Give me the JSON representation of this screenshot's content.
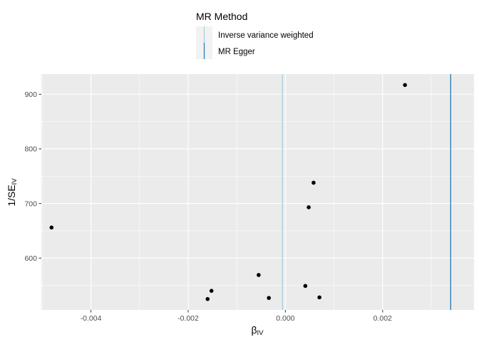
{
  "chart_data": {
    "type": "scatter",
    "title": "",
    "xlabel": "β",
    "xlabel_sub": "IV",
    "ylabel": "1/SE",
    "ylabel_sub": "IV",
    "xlim": [
      -0.00502,
      0.00388
    ],
    "ylim": [
      505,
      937
    ],
    "x_ticks": [
      -0.004,
      -0.002,
      0.0,
      0.002
    ],
    "x_tick_labels": [
      "-0.004",
      "-0.002",
      "0.000",
      "0.002"
    ],
    "y_ticks": [
      600,
      700,
      800,
      900
    ],
    "y_tick_labels": [
      "600",
      "700",
      "800",
      "900"
    ],
    "grid": true,
    "points": [
      {
        "x": -0.00481,
        "y": 656
      },
      {
        "x": -0.0016,
        "y": 525
      },
      {
        "x": -0.00152,
        "y": 540
      },
      {
        "x": -0.00055,
        "y": 569
      },
      {
        "x": -0.00034,
        "y": 527
      },
      {
        "x": 0.00041,
        "y": 549
      },
      {
        "x": 0.00048,
        "y": 693
      },
      {
        "x": 0.00058,
        "y": 738
      },
      {
        "x": 0.0007,
        "y": 528
      },
      {
        "x": 0.00246,
        "y": 917
      }
    ],
    "vlines": [
      {
        "name": "Inverse variance weighted",
        "x": -6e-05,
        "color": "#a6cee3"
      },
      {
        "name": "MR Egger",
        "x": 0.0034,
        "color": "#1f78b4"
      }
    ],
    "legend": {
      "title": "MR Method",
      "placement": "top",
      "entries": [
        "Inverse variance weighted",
        "MR Egger"
      ]
    }
  },
  "colors": {
    "panel_background": "#ebebeb",
    "grid_major": "#ffffff",
    "point": "#000000"
  }
}
